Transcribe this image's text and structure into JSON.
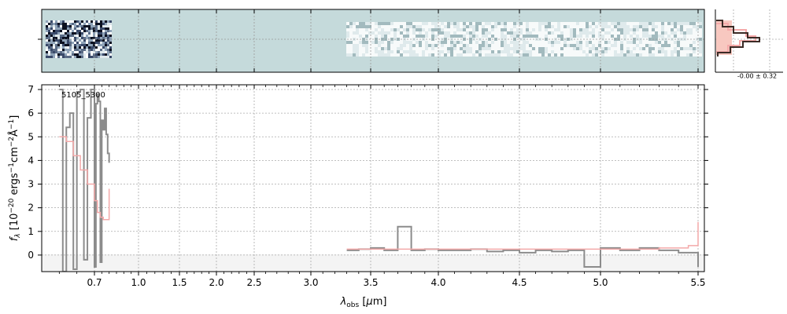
{
  "chart_data": {
    "type": "line",
    "object_label": "5105_5300",
    "xlabel": "λobs [μm]",
    "ylabel": "fλ [10−20 ergs−1cm−2Å−1]",
    "x_axis_type": "nonlinear (piecewise, compressed gap 0.8–3.3 μm)",
    "x_tick_labels": [
      "0.7",
      "1.0",
      "1.5",
      "2.0",
      "2.5",
      "3.0",
      "3.5",
      "4.0",
      "4.5",
      "5.0",
      "5.5"
    ],
    "x_tick_values": [
      0.7,
      1.0,
      1.5,
      2.0,
      2.5,
      3.0,
      3.5,
      4.0,
      4.5,
      5.0,
      5.5
    ],
    "ylim": [
      -0.7,
      7.2
    ],
    "y_ticks": [
      0,
      1,
      2,
      3,
      4,
      5,
      6,
      7
    ],
    "grid": true,
    "side_panel_label": "-0.00 ± 0.32",
    "series": [
      {
        "role": "spectrum_prism_blue",
        "color": "#8c8c8c",
        "x": [
          0.6,
          0.61,
          0.62,
          0.63,
          0.64,
          0.65,
          0.66,
          0.67,
          0.68,
          0.69,
          0.7,
          0.71,
          0.72,
          0.73,
          0.74,
          0.75,
          0.76,
          0.77,
          0.78,
          0.79,
          0.8
        ],
        "y": [
          7.0,
          -0.7,
          5.4,
          6.0,
          -0.6,
          6.9,
          7.0,
          -0.2,
          5.8,
          7.0,
          -0.5,
          6.4,
          6.8,
          6.5,
          -0.3,
          5.7,
          5.3,
          6.2,
          5.1,
          4.3,
          3.9
        ]
      },
      {
        "role": "model_blue",
        "color": "#f4a9a9",
        "x": [
          0.6,
          0.62,
          0.64,
          0.66,
          0.68,
          0.7,
          0.72,
          0.74,
          0.76,
          0.78,
          0.8
        ],
        "y": [
          5.0,
          4.8,
          4.2,
          3.6,
          3.0,
          2.3,
          1.8,
          1.6,
          1.5,
          1.5,
          2.8
        ]
      },
      {
        "role": "spectrum_red",
        "color": "#8c8c8c",
        "x": [
          3.3,
          3.4,
          3.5,
          3.6,
          3.7,
          3.8,
          3.9,
          4.0,
          4.1,
          4.2,
          4.3,
          4.4,
          4.5,
          4.6,
          4.7,
          4.8,
          4.9,
          5.0,
          5.1,
          5.2,
          5.3,
          5.4,
          5.5
        ],
        "y": [
          0.2,
          0.25,
          0.3,
          0.2,
          1.2,
          0.2,
          0.25,
          0.2,
          0.2,
          0.25,
          0.15,
          0.2,
          0.1,
          0.2,
          0.15,
          0.2,
          -0.5,
          0.3,
          0.2,
          0.3,
          0.2,
          0.1,
          -0.5
        ]
      },
      {
        "role": "model_red",
        "color": "#f4a9a9",
        "x": [
          3.3,
          3.6,
          4.0,
          4.5,
          5.0,
          5.3,
          5.45,
          5.5
        ],
        "y": [
          0.25,
          0.25,
          0.25,
          0.25,
          0.25,
          0.3,
          0.4,
          1.4
        ]
      }
    ]
  }
}
